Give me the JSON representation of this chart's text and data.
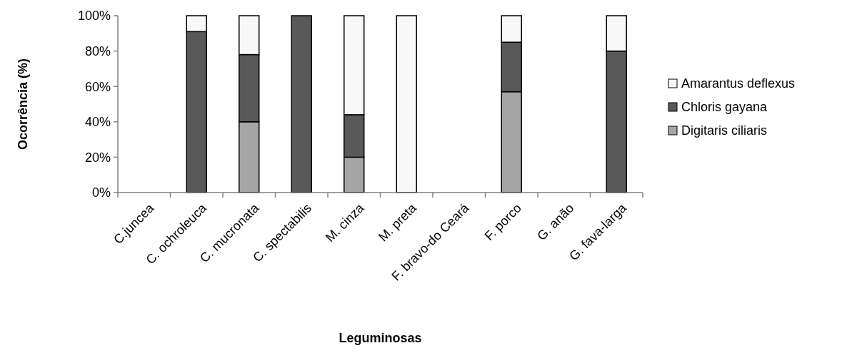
{
  "chart_data": {
    "type": "bar",
    "stacked": true,
    "xlabel": "Leguminosas",
    "ylabel": "Ocorrência (%)",
    "categories": [
      "C.juncea",
      "C. ochroleuca",
      "C. mucronata",
      "C. spectabilis",
      "M. cinza",
      "M. preta",
      "F. bravo-do Ceará",
      "F. porco",
      "G. anão",
      "G. fava-larga"
    ],
    "series": [
      {
        "name": "Digitaris ciliaris",
        "color": "#a6a6a6",
        "values": [
          0,
          0,
          40,
          0,
          20,
          0,
          0,
          57,
          0,
          0
        ]
      },
      {
        "name": "Chloris gayana",
        "color": "#595959",
        "values": [
          0,
          91,
          38,
          100,
          24,
          0,
          0,
          28,
          0,
          80
        ]
      },
      {
        "name": "Amarantus deflexus",
        "color": "#f8f8f8",
        "values": [
          0,
          9,
          22,
          0,
          56,
          100,
          0,
          15,
          0,
          20
        ]
      }
    ],
    "ylim": [
      0,
      100
    ],
    "yticks": [
      {
        "value": 0,
        "label": "0%"
      },
      {
        "value": 20,
        "label": "20%"
      },
      {
        "value": 40,
        "label": "40%"
      },
      {
        "value": 60,
        "label": "60%"
      },
      {
        "value": 80,
        "label": "80%"
      },
      {
        "value": 100,
        "label": "100%"
      }
    ],
    "grid": false,
    "legend": "right"
  }
}
